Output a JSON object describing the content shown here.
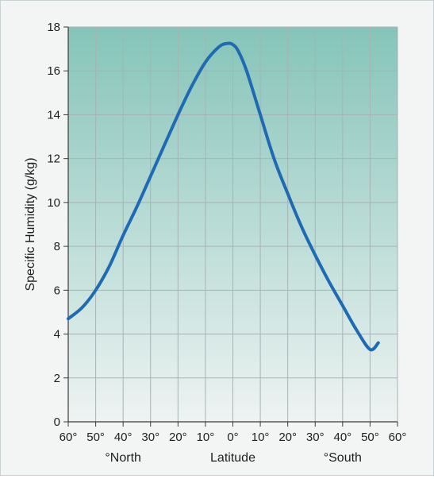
{
  "chart_data": {
    "type": "line",
    "xlabel": "Latitude",
    "ylabel": "Specific Humidity (g/kg)",
    "x_region_labels": {
      "north": "°North",
      "south": "°South"
    },
    "x_ticks": [
      {
        "label": "60°",
        "value": 60
      },
      {
        "label": "50°",
        "value": 50
      },
      {
        "label": "40°",
        "value": 40
      },
      {
        "label": "30°",
        "value": 30
      },
      {
        "label": "20°",
        "value": 20
      },
      {
        "label": "10°",
        "value": 10
      },
      {
        "label": "0°",
        "value": 0
      },
      {
        "label": "10°",
        "value": -10
      },
      {
        "label": "20°",
        "value": -20
      },
      {
        "label": "30°",
        "value": -30
      },
      {
        "label": "40°",
        "value": -40
      },
      {
        "label": "50°",
        "value": -50
      },
      {
        "label": "60°",
        "value": -60
      }
    ],
    "y_ticks": [
      0,
      2,
      4,
      6,
      8,
      10,
      12,
      14,
      16,
      18
    ],
    "xlim": [
      60,
      -60
    ],
    "ylim": [
      0,
      18
    ],
    "grid": true,
    "colors": {
      "line": "#1f6bb3",
      "bg_top": "#85c4b9",
      "bg_bottom": "#eef3f2",
      "grid": "#a6b4b3",
      "axis": "#3a3a3a"
    },
    "series": [
      {
        "x": [
          60,
          55,
          50,
          45,
          40,
          35,
          30,
          25,
          20,
          15,
          10,
          5,
          2,
          0,
          -2,
          -5,
          -10,
          -15,
          -20,
          -25,
          -30,
          -35,
          -40,
          -45,
          -50,
          -53
        ],
        "y": [
          4.7,
          5.2,
          6.0,
          7.1,
          8.5,
          9.8,
          11.2,
          12.6,
          14.0,
          15.3,
          16.4,
          17.1,
          17.25,
          17.2,
          16.9,
          16.0,
          14.0,
          12.0,
          10.4,
          8.9,
          7.6,
          6.4,
          5.3,
          4.2,
          3.3,
          3.6
        ]
      }
    ]
  }
}
